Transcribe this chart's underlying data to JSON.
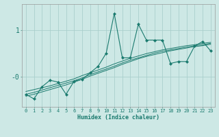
{
  "xlabel": "Humidex (Indice chaleur)",
  "background_color": "#cde8e5",
  "grid_color": "#aacfcc",
  "line_color": "#1a7a6e",
  "x_data": [
    0,
    1,
    2,
    3,
    4,
    5,
    6,
    7,
    8,
    9,
    10,
    11,
    12,
    13,
    14,
    15,
    16,
    17,
    18,
    19,
    20,
    21,
    22,
    23
  ],
  "y_main": [
    -0.38,
    -0.48,
    -0.22,
    -0.08,
    -0.12,
    -0.38,
    -0.1,
    -0.06,
    0.08,
    0.22,
    0.5,
    1.35,
    0.4,
    0.4,
    1.12,
    0.78,
    0.78,
    0.78,
    0.28,
    0.32,
    0.32,
    0.65,
    0.75,
    0.55
  ],
  "y_line1": [
    -0.32,
    -0.28,
    -0.24,
    -0.2,
    -0.15,
    -0.1,
    -0.05,
    0.02,
    0.08,
    0.14,
    0.2,
    0.27,
    0.33,
    0.39,
    0.44,
    0.49,
    0.53,
    0.57,
    0.6,
    0.63,
    0.66,
    0.68,
    0.71,
    0.73
  ],
  "y_line2": [
    -0.38,
    -0.34,
    -0.29,
    -0.24,
    -0.19,
    -0.14,
    -0.09,
    -0.03,
    0.04,
    0.1,
    0.16,
    0.22,
    0.29,
    0.35,
    0.4,
    0.45,
    0.5,
    0.54,
    0.57,
    0.6,
    0.63,
    0.66,
    0.68,
    0.71
  ],
  "y_line3": [
    -0.42,
    -0.38,
    -0.33,
    -0.28,
    -0.23,
    -0.18,
    -0.12,
    -0.06,
    0.01,
    0.07,
    0.13,
    0.19,
    0.26,
    0.32,
    0.38,
    0.43,
    0.47,
    0.51,
    0.55,
    0.58,
    0.61,
    0.64,
    0.66,
    0.69
  ],
  "ytick_labels": [
    "-0",
    "1"
  ],
  "ytick_values": [
    0.0,
    1.0
  ],
  "xlim": [
    -0.5,
    23.5
  ],
  "ylim": [
    -0.65,
    1.55
  ]
}
